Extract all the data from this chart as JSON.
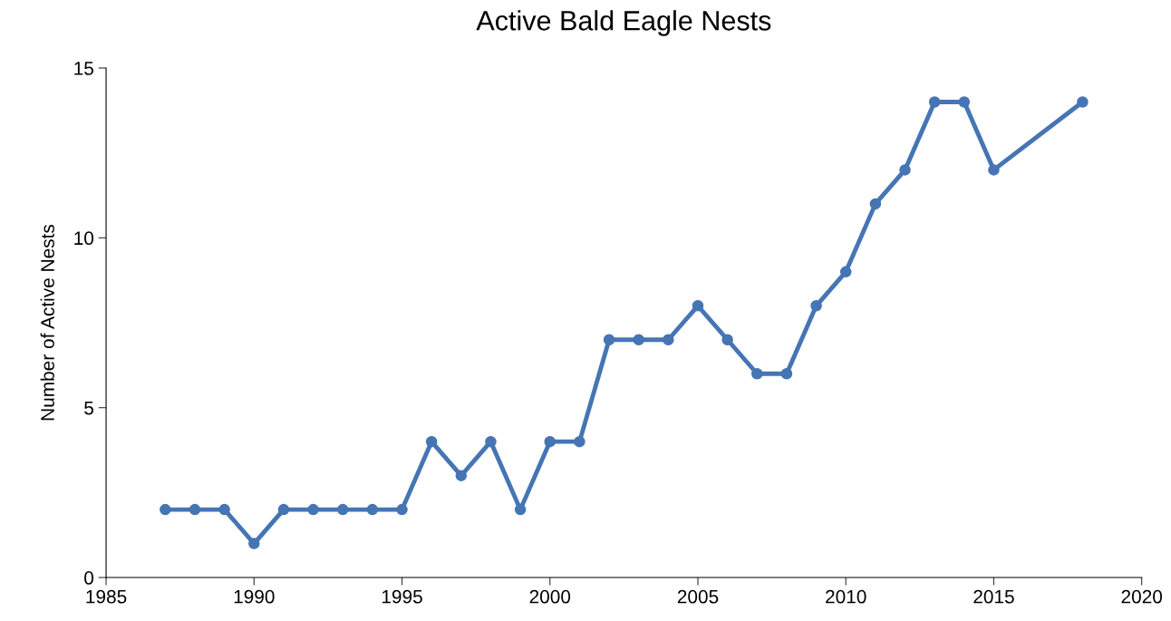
{
  "chart_data": {
    "type": "line",
    "title": "Active Bald Eagle Nests",
    "ylabel": "Number of Active Nests",
    "x": [
      1987,
      1988,
      1989,
      1990,
      1991,
      1992,
      1993,
      1994,
      1995,
      1996,
      1997,
      1998,
      1999,
      2000,
      2001,
      2002,
      2003,
      2004,
      2005,
      2006,
      2007,
      2008,
      2009,
      2010,
      2011,
      2012,
      2013,
      2014,
      2015,
      2018
    ],
    "series": [
      {
        "color": "#4575b4",
        "values": [
          2,
          2,
          2,
          1,
          2,
          2,
          2,
          2,
          2,
          4,
          3,
          4,
          2,
          4,
          4,
          7,
          7,
          7,
          8,
          7,
          6,
          6,
          8,
          9,
          11,
          12,
          14,
          14,
          12,
          14
        ]
      }
    ],
    "xlim": [
      1985,
      2020
    ],
    "xticks": [
      1985,
      1990,
      1995,
      2000,
      2005,
      2010,
      2015,
      2020
    ],
    "ylim": [
      0,
      15
    ],
    "yticks": [
      0,
      5,
      10,
      15
    ],
    "grid": false,
    "legend": false,
    "marker": "circle",
    "line_style": "solid"
  }
}
